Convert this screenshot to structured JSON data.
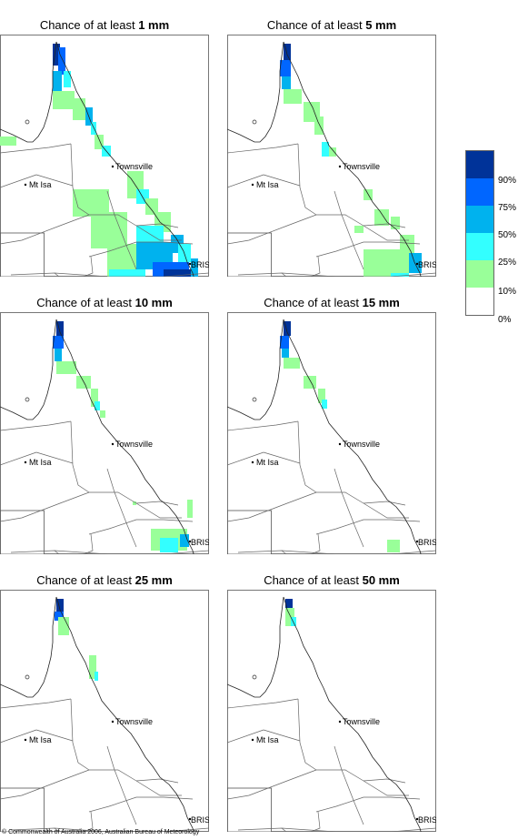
{
  "panels": [
    {
      "title_prefix": "Chance of at least ",
      "threshold": "1 mm"
    },
    {
      "title_prefix": "Chance of at least ",
      "threshold": "5 mm"
    },
    {
      "title_prefix": "Chance of at least ",
      "threshold": "10 mm"
    },
    {
      "title_prefix": "Chance of at least ",
      "threshold": "15 mm"
    },
    {
      "title_prefix": "Chance of at least ",
      "threshold": "25 mm"
    },
    {
      "title_prefix": "Chance of at least ",
      "threshold": "50 mm"
    }
  ],
  "places": {
    "townsville": "Townsville",
    "mt_isa": "Mt Isa",
    "bris": "BRIS"
  },
  "legend": {
    "colors": [
      "#003399",
      "#0066ff",
      "#00b2ee",
      "#33ffff",
      "#99ff99",
      "#ffffff"
    ],
    "ticks": [
      "90%",
      "75%",
      "50%",
      "25%",
      "10%",
      "0%"
    ]
  },
  "copyright": "© Commonwealth of Australia 2006, Australian Bureau of Meteorology"
}
